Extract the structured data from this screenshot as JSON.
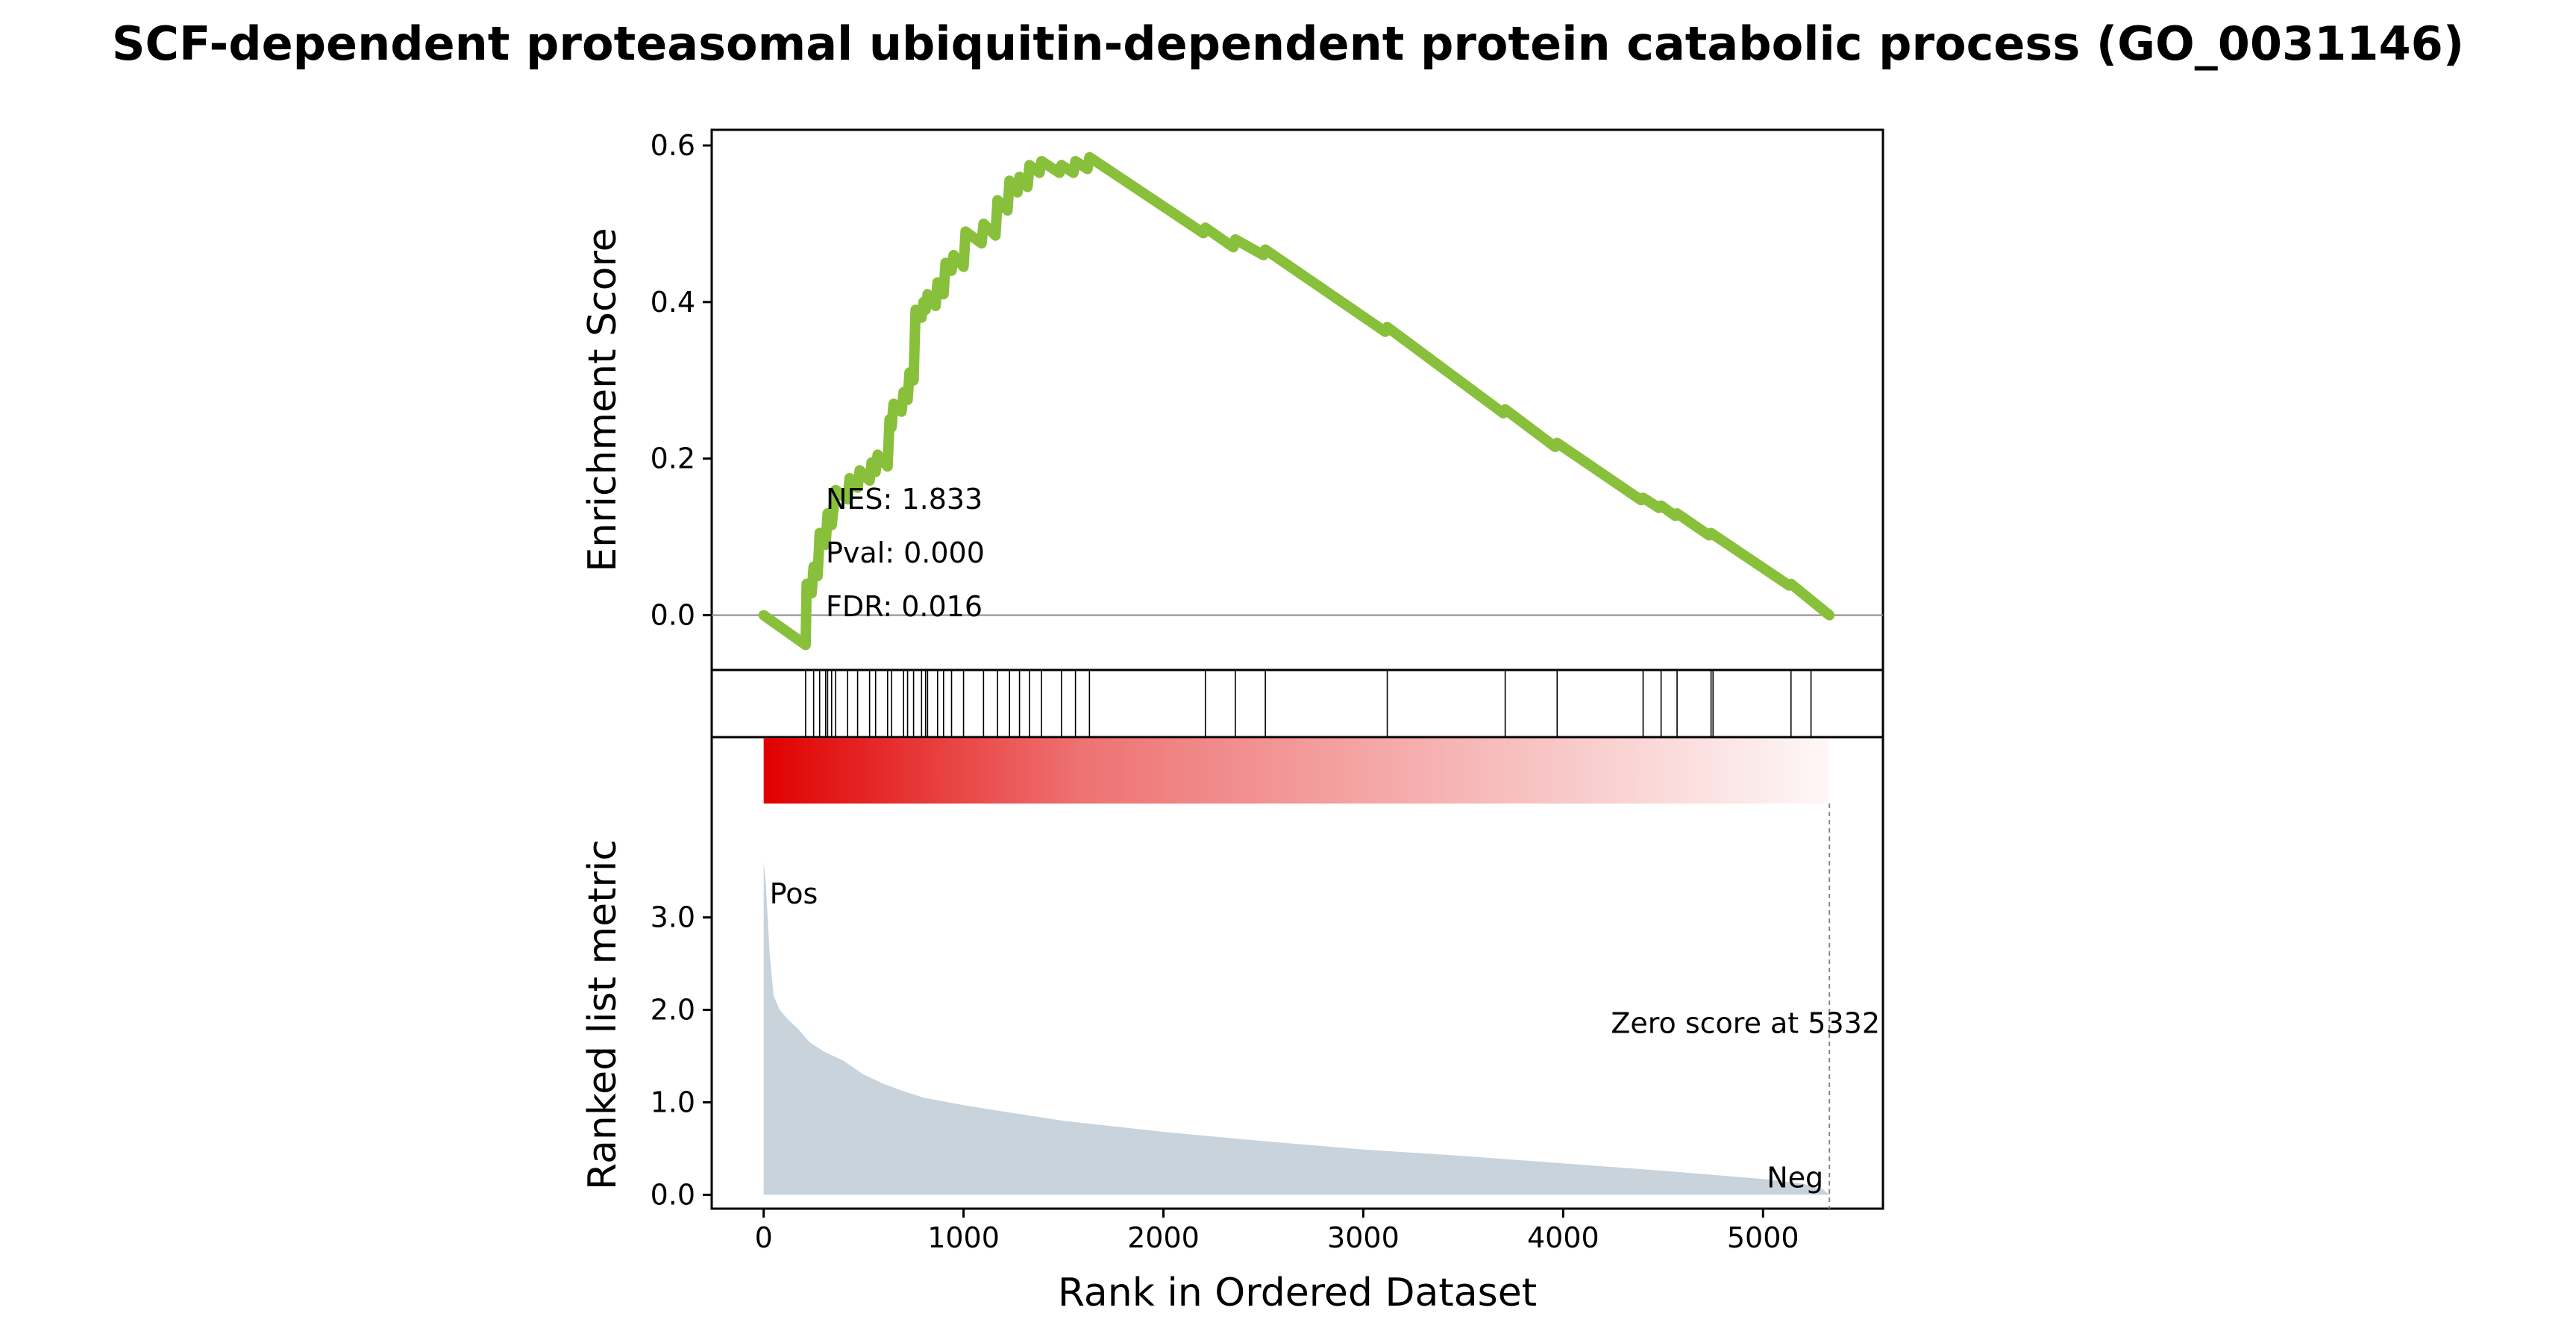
{
  "chart_data": {
    "type": "line",
    "title": "SCF-dependent proteasomal ubiquitin-dependent protein catabolic process (GO_0031146)",
    "xlabel": "Rank in Ordered Dataset",
    "enrichment": {
      "ylabel": "Enrichment Score",
      "ylim": [
        -0.07,
        0.62
      ],
      "yticks": [
        0.0,
        0.2,
        0.4,
        0.6
      ],
      "ytick_labels": [
        "0.0",
        "0.2",
        "0.4",
        "0.6"
      ],
      "line_color": "#88c03c",
      "x": [
        0,
        210,
        215,
        240,
        250,
        270,
        280,
        310,
        320,
        340,
        360,
        420,
        430,
        470,
        480,
        530,
        540,
        560,
        570,
        620,
        630,
        640,
        650,
        690,
        700,
        720,
        730,
        750,
        760,
        790,
        800,
        810,
        820,
        860,
        870,
        900,
        910,
        940,
        950,
        1000,
        1010,
        1090,
        1100,
        1160,
        1170,
        1220,
        1230,
        1270,
        1280,
        1320,
        1330,
        1380,
        1390,
        1480,
        1490,
        1550,
        1560,
        1620,
        1630,
        2200,
        2210,
        2350,
        2360,
        2500,
        2510,
        3110,
        3120,
        3700,
        3710,
        3960,
        3970,
        4390,
        4400,
        4480,
        4490,
        4560,
        4570,
        4730,
        4740,
        5130,
        5140,
        5332
      ],
      "y": [
        0.0,
        -0.038,
        0.04,
        0.028,
        0.062,
        0.05,
        0.105,
        0.09,
        0.13,
        0.115,
        0.16,
        0.148,
        0.175,
        0.163,
        0.185,
        0.172,
        0.195,
        0.183,
        0.205,
        0.19,
        0.25,
        0.24,
        0.27,
        0.26,
        0.285,
        0.275,
        0.31,
        0.3,
        0.39,
        0.38,
        0.4,
        0.39,
        0.41,
        0.395,
        0.425,
        0.41,
        0.45,
        0.44,
        0.46,
        0.445,
        0.49,
        0.475,
        0.5,
        0.485,
        0.53,
        0.517,
        0.555,
        0.54,
        0.56,
        0.547,
        0.575,
        0.565,
        0.58,
        0.565,
        0.575,
        0.565,
        0.58,
        0.57,
        0.585,
        0.488,
        0.495,
        0.47,
        0.48,
        0.46,
        0.467,
        0.362,
        0.368,
        0.258,
        0.263,
        0.215,
        0.22,
        0.147,
        0.15,
        0.137,
        0.14,
        0.127,
        0.13,
        0.102,
        0.105,
        0.038,
        0.04,
        0.0
      ],
      "stats": [
        "NES: 1.833",
        "Pval: 0.000",
        "FDR: 0.016"
      ]
    },
    "hits": {
      "ranks": [
        210,
        250,
        280,
        310,
        320,
        340,
        360,
        420,
        470,
        530,
        560,
        620,
        640,
        700,
        720,
        750,
        790,
        810,
        820,
        870,
        900,
        940,
        1000,
        1100,
        1170,
        1230,
        1280,
        1330,
        1390,
        1490,
        1560,
        1630,
        2210,
        2360,
        2510,
        3120,
        3710,
        3970,
        4400,
        4490,
        4570,
        4740,
        4750,
        5140,
        5240
      ]
    },
    "ranked_metric": {
      "ylabel": "Ranked list metric",
      "ylim": [
        -0.15,
        4.95
      ],
      "yticks": [
        0.0,
        1.0,
        2.0,
        3.0
      ],
      "ytick_labels": [
        "0.0",
        "1.0",
        "2.0",
        "3.0"
      ],
      "fill_color": "#c8d3dc",
      "x": [
        0,
        10,
        20,
        30,
        50,
        80,
        120,
        170,
        230,
        300,
        400,
        500,
        600,
        700,
        800,
        1000,
        1200,
        1500,
        2000,
        2500,
        3000,
        3500,
        4000,
        4500,
        5000,
        5200,
        5300,
        5332
      ],
      "y": [
        3.6,
        3.4,
        3.0,
        2.6,
        2.15,
        2.0,
        1.9,
        1.8,
        1.65,
        1.55,
        1.45,
        1.3,
        1.2,
        1.12,
        1.05,
        0.97,
        0.9,
        0.8,
        0.68,
        0.58,
        0.49,
        0.42,
        0.34,
        0.26,
        0.17,
        0.12,
        0.06,
        0.0
      ],
      "pos_label": "Pos",
      "neg_label": "Neg",
      "pos_color": "#e00000",
      "neg_color": "#0000e0",
      "zero_label": "Zero score at 5332",
      "zero_rank": 5332
    },
    "xlim": [
      -260,
      5600
    ],
    "xticks": [
      0,
      1000,
      2000,
      3000,
      4000,
      5000
    ],
    "xtick_labels": [
      "0",
      "1000",
      "2000",
      "3000",
      "4000",
      "5000"
    ],
    "heatbar": {
      "color": "#e00000",
      "start_rank": 0,
      "end_rank": 5332
    }
  }
}
